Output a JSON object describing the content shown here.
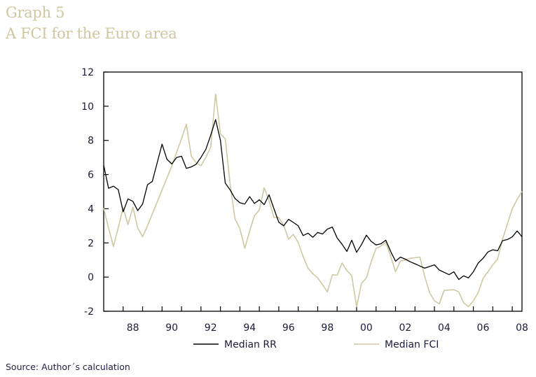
{
  "header": {
    "graph_number": "Graph 5",
    "title": "A FCI for the Euro area"
  },
  "source": "Source: Author´s calculation",
  "colors": {
    "rr": "#000000",
    "fci": "#cfc8a2",
    "title": "#cfc7a0",
    "axis": "#000000"
  },
  "chart_data": {
    "type": "line",
    "title": "A FCI for the Euro area",
    "xlabel": "",
    "ylabel": "",
    "xlim": [
      1987.0,
      2008.5
    ],
    "ylim": [
      -2,
      12
    ],
    "x_ticks": [
      1988,
      1989,
      1990,
      1991,
      1992,
      1993,
      1994,
      1995,
      1996,
      1997,
      1998,
      1999,
      2000,
      2001,
      2002,
      2003,
      2004,
      2005,
      2006,
      2007,
      2008
    ],
    "x_tick_labels": [
      {
        "year": 1988.5,
        "label": "88"
      },
      {
        "year": 1990.5,
        "label": "90"
      },
      {
        "year": 1992.5,
        "label": "92"
      },
      {
        "year": 1994.5,
        "label": "94"
      },
      {
        "year": 1996.5,
        "label": "96"
      },
      {
        "year": 1998.5,
        "label": "98"
      },
      {
        "year": 2000.5,
        "label": "00"
      },
      {
        "year": 2002.5,
        "label": "02"
      },
      {
        "year": 2004.5,
        "label": "04"
      },
      {
        "year": 2006.5,
        "label": "06"
      },
      {
        "year": 2008.5,
        "label": "08"
      }
    ],
    "y_ticks": [
      -2,
      0,
      2,
      4,
      6,
      8,
      10,
      12
    ],
    "y_tick_labels": [
      "-2",
      "0",
      "2",
      "4",
      "6",
      "8",
      "10",
      "12"
    ],
    "grid": false,
    "legend": "bottom",
    "x_start": 1987.0,
    "x_step": 0.25,
    "series": [
      {
        "name": "Median RR",
        "values": [
          6.55,
          5.2,
          5.32,
          5.12,
          3.82,
          4.58,
          4.43,
          3.89,
          4.27,
          5.4,
          5.6,
          6.7,
          7.78,
          6.9,
          6.62,
          7.0,
          7.07,
          6.36,
          6.45,
          6.6,
          7.0,
          7.48,
          8.3,
          9.22,
          8.0,
          5.5,
          5.1,
          4.6,
          4.35,
          4.27,
          4.71,
          4.31,
          4.52,
          4.24,
          4.82,
          4.0,
          3.21,
          3.0,
          3.38,
          3.2,
          3.0,
          2.43,
          2.57,
          2.33,
          2.61,
          2.52,
          2.81,
          2.93,
          2.29,
          1.92,
          1.5,
          2.16,
          1.45,
          1.9,
          2.45,
          2.09,
          1.88,
          1.95,
          2.16,
          1.5,
          0.93,
          1.17,
          1.05,
          0.9,
          0.78,
          0.65,
          0.52,
          0.62,
          0.72,
          0.41,
          0.28,
          0.14,
          0.31,
          -0.14,
          0.07,
          -0.05,
          0.31,
          0.82,
          1.1,
          1.47,
          1.6,
          1.54,
          2.13,
          2.2,
          2.35,
          2.7,
          2.36
        ]
      },
      {
        "name": "Median FCI",
        "values": [
          4.04,
          2.87,
          1.8,
          2.9,
          4.06,
          3.07,
          4.09,
          2.87,
          2.36,
          3.0,
          3.7,
          4.4,
          5.1,
          5.8,
          6.5,
          7.3,
          8.1,
          8.95,
          7.07,
          6.7,
          6.52,
          7.0,
          7.61,
          10.72,
          8.39,
          8.09,
          5.43,
          3.41,
          2.84,
          1.68,
          2.7,
          3.59,
          3.93,
          5.23,
          4.47,
          3.49,
          3.49,
          3.04,
          2.22,
          2.5,
          2.02,
          1.2,
          0.52,
          0.2,
          -0.05,
          -0.45,
          -0.87,
          0.14,
          0.11,
          0.82,
          0.38,
          0.08,
          -1.73,
          -0.37,
          -0.05,
          0.9,
          1.68,
          1.81,
          2.05,
          1.2,
          0.31,
          0.93,
          1.0,
          1.1,
          1.13,
          1.17,
          0.04,
          -0.91,
          -1.39,
          -1.56,
          -0.78,
          -0.76,
          -0.74,
          -0.87,
          -1.5,
          -1.73,
          -1.39,
          -0.91,
          -0.07,
          0.31,
          0.72,
          1.06,
          2.22,
          3.11,
          4.0,
          4.54,
          5.02
        ]
      }
    ]
  }
}
